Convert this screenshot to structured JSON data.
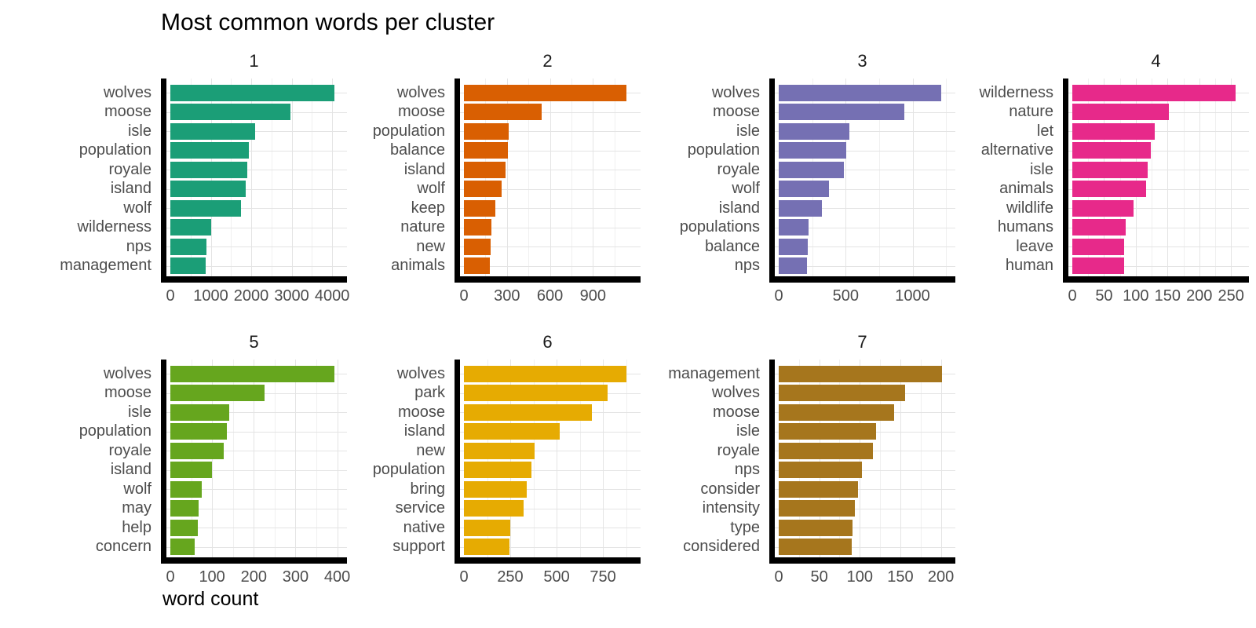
{
  "title": "Most common words per cluster",
  "xlabel": "word count",
  "style": {
    "axis_line_color": "#000000",
    "grid_major_color": "#e4e4e4",
    "grid_minor_color": "#f0f0f0",
    "axis_text_color": "#4d4d4d",
    "strip_text_color": "#1a1a1a",
    "title_color": "#000000",
    "background": "#ffffff"
  },
  "chart_data": [
    {
      "type": "bar",
      "orientation": "horizontal",
      "facet": "1",
      "color": "#1B9E77",
      "categories": [
        "wolves",
        "moose",
        "isle",
        "population",
        "royale",
        "island",
        "wolf",
        "wilderness",
        "nps",
        "management"
      ],
      "values": [
        4060,
        2960,
        2090,
        1950,
        1910,
        1860,
        1740,
        1000,
        895,
        875
      ],
      "x_ticks": [
        0,
        1000,
        2000,
        3000,
        4000
      ],
      "x_minor_ticks": [
        500,
        1500,
        2500,
        3500
      ],
      "xlim": [
        0,
        4270
      ],
      "grid": true,
      "legend": false,
      "label_gutter": 205
    },
    {
      "type": "bar",
      "orientation": "horizontal",
      "facet": "2",
      "color": "#D95F02",
      "categories": [
        "wolves",
        "moose",
        "population",
        "balance",
        "island",
        "wolf",
        "keep",
        "nature",
        "new",
        "animals"
      ],
      "values": [
        1135,
        540,
        311,
        308,
        289,
        262,
        218,
        191,
        184,
        180
      ],
      "x_ticks": [
        0,
        300,
        600,
        900
      ],
      "x_minor_ticks": [
        150,
        450,
        750,
        1050
      ],
      "xlim": [
        0,
        1205
      ],
      "grid": true,
      "legend": false,
      "label_gutter": 137
    },
    {
      "type": "bar",
      "orientation": "horizontal",
      "facet": "3",
      "color": "#7570B3",
      "categories": [
        "wolves",
        "moose",
        "isle",
        "population",
        "royale",
        "wolf",
        "island",
        "populations",
        "balance",
        "nps"
      ],
      "values": [
        1215,
        940,
        525,
        505,
        486,
        376,
        324,
        220,
        217,
        212
      ],
      "x_ticks": [
        0,
        500,
        1000
      ],
      "x_minor_ticks": [
        250,
        750,
        1250
      ],
      "xlim": [
        0,
        1290
      ],
      "grid": true,
      "legend": false,
      "label_gutter": 164
    },
    {
      "type": "bar",
      "orientation": "horizontal",
      "facet": "4",
      "color": "#E7298A",
      "categories": [
        "wilderness",
        "nature",
        "let",
        "alternative",
        "isle",
        "animals",
        "wildlife",
        "humans",
        "leave",
        "human"
      ],
      "values": [
        257,
        152,
        130,
        124,
        119,
        116,
        97,
        84,
        82,
        81
      ],
      "x_ticks": [
        0,
        50,
        100,
        150,
        200,
        250
      ],
      "x_minor_ticks": [
        25,
        75,
        125,
        175,
        225
      ],
      "xlim": [
        0,
        272
      ],
      "grid": true,
      "legend": false,
      "label_gutter": 137
    },
    {
      "type": "bar",
      "orientation": "horizontal",
      "facet": "5",
      "color": "#66A61E",
      "categories": [
        "wolves",
        "moose",
        "isle",
        "population",
        "royale",
        "island",
        "wolf",
        "may",
        "help",
        "concern"
      ],
      "values": [
        394,
        225,
        141,
        136,
        128,
        100,
        75,
        68,
        66,
        58
      ],
      "x_ticks": [
        0,
        100,
        200,
        300,
        400
      ],
      "x_minor_ticks": [
        50,
        150,
        250,
        350
      ],
      "xlim": [
        0,
        414
      ],
      "grid": true,
      "legend": false,
      "label_gutter": 205
    },
    {
      "type": "bar",
      "orientation": "horizontal",
      "facet": "6",
      "color": "#E6AB02",
      "categories": [
        "wolves",
        "park",
        "moose",
        "island",
        "new",
        "population",
        "bring",
        "service",
        "native",
        "support"
      ],
      "values": [
        878,
        776,
        692,
        515,
        380,
        363,
        338,
        321,
        249,
        245
      ],
      "x_ticks": [
        0,
        250,
        500,
        750
      ],
      "x_minor_ticks": [
        125,
        375,
        625,
        875
      ],
      "xlim": [
        0,
        932
      ],
      "grid": true,
      "legend": false,
      "label_gutter": 137
    },
    {
      "type": "bar",
      "orientation": "horizontal",
      "facet": "7",
      "color": "#A6761D",
      "categories": [
        "management",
        "wolves",
        "moose",
        "isle",
        "royale",
        "nps",
        "consider",
        "intensity",
        "type",
        "considered"
      ],
      "values": [
        201,
        156,
        142,
        120,
        116,
        103,
        98,
        94,
        91,
        90
      ],
      "x_ticks": [
        0,
        50,
        100,
        150,
        200
      ],
      "x_minor_ticks": [
        25,
        75,
        125,
        175
      ],
      "xlim": [
        0,
        213
      ],
      "grid": true,
      "legend": false,
      "label_gutter": 164
    }
  ],
  "layout": {
    "rows": [
      [
        "0",
        "1",
        "2",
        "3"
      ],
      [
        "4",
        "5",
        "6"
      ]
    ]
  }
}
